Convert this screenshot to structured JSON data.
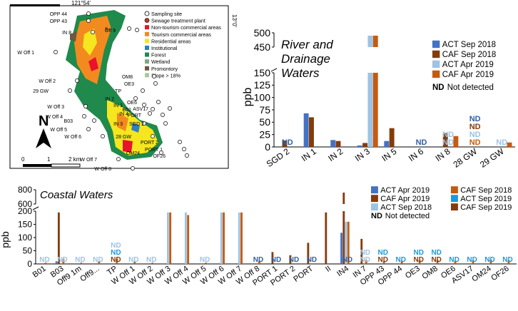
{
  "map": {
    "longitude_label": "121°54'",
    "latitude_label": "13°0'",
    "north_label": "N",
    "scale": {
      "zero": "0",
      "one": "1",
      "two": "2 km"
    },
    "legend": [
      {
        "label": "Sampling site",
        "symbol": "circle-open",
        "color": "#ffffff"
      },
      {
        "label": "Sewage treatment plant",
        "symbol": "circle-filled",
        "color": "#c0392b"
      },
      {
        "label": "Non-tourism commercial areas",
        "symbol": "square",
        "color": "#e8132b"
      },
      {
        "label": "Tourism commercial areas",
        "symbol": "square",
        "color": "#f28a1f"
      },
      {
        "label": "Residential areas",
        "symbol": "square",
        "color": "#f5e61f"
      },
      {
        "label": "Institutional",
        "symbol": "square",
        "color": "#2f7fc4"
      },
      {
        "label": "Forest",
        "symbol": "square",
        "color": "#1f8a4c"
      },
      {
        "label": "Wetland",
        "symbol": "square",
        "color": "#7fa58a"
      },
      {
        "label": "Promontory",
        "symbol": "square",
        "color": "#6b5a3e"
      },
      {
        "label": "Slope > 18%",
        "symbol": "square",
        "color": "#a8c8a0"
      }
    ],
    "site_labels": [
      "OPP 44",
      "OPP 43",
      "IN 8",
      "II",
      "Off 9",
      "W Off 1",
      "OM8",
      "W Off 2",
      "OE3",
      "29 GW",
      "TP",
      "IN 2",
      "IN 1",
      "OE6",
      "ASV17",
      "IN 4",
      "PORT",
      "W Off 3",
      "B01",
      "IN 3",
      "SGD 2",
      "W Off 4",
      "B03",
      "W Off 5",
      "W Off 6",
      "28 GW",
      "PORT 2",
      "PORT 1",
      "OM24",
      "OF26",
      "W Off 7",
      "W Off 8"
    ]
  },
  "chart_data": [
    {
      "type": "bar",
      "title": "River and Drainage Waters",
      "xlabel": "",
      "ylabel": "ppb",
      "ylim": [
        0,
        500
      ],
      "axis_break": [
        150,
        450
      ],
      "yticks_lower": [
        "0",
        "25",
        "50",
        "75",
        "100",
        "125",
        "150"
      ],
      "yticks_upper": [
        "450",
        "500"
      ],
      "categories": [
        "SGD 2",
        "IN 1",
        "IN 2",
        "IN 3",
        "IN 5",
        "IN 6",
        "IN 8",
        "28 GW",
        "29 GW"
      ],
      "series": [
        {
          "name": "ACT Sep 2018",
          "color": "#4472c4",
          "values": [
            null,
            68,
            14,
            3,
            12,
            null,
            null,
            null,
            null
          ]
        },
        {
          "name": "CAF Sep 2018",
          "color": "#843c0c",
          "values": [
            13,
            60,
            12,
            8,
            38,
            null,
            28,
            null,
            null
          ]
        },
        {
          "name": "ACT Apr 2019",
          "color": "#9dc3e6",
          "values": [
            null,
            null,
            null,
            490,
            null,
            null,
            null,
            null,
            null
          ]
        },
        {
          "name": "CAF Apr 2019",
          "color": "#c55a11",
          "values": [
            null,
            null,
            null,
            490,
            null,
            null,
            22,
            null,
            9
          ]
        }
      ],
      "nd_labels": [
        {
          "category": "SGD 2",
          "text": "ND",
          "color": "#2e5fa7"
        },
        {
          "category": "IN 6",
          "text": "ND",
          "color": "#2e5fa7"
        },
        {
          "category": "IN 8",
          "text": "ND",
          "color": "#9dc3e6"
        },
        {
          "category": "IN 8",
          "text": "ND",
          "color": "#9dc3e6"
        },
        {
          "category": "28 GW",
          "text": "ND",
          "color": "#c55a11"
        },
        {
          "category": "28 GW",
          "text": "ND",
          "color": "#9dc3e6"
        },
        {
          "category": "28 GW",
          "text": "ND",
          "color": "#843c0c"
        },
        {
          "category": "28 GW",
          "text": "ND",
          "color": "#2e5fa7"
        },
        {
          "category": "29 GW",
          "text": "ND",
          "color": "#9dc3e6"
        }
      ],
      "legend": {
        "placement": "top-right",
        "items": [
          {
            "label": "ACT Sep 2018",
            "color": "#4472c4"
          },
          {
            "label": "CAF Sep 2018",
            "color": "#843c0c"
          },
          {
            "label": "ACT Apr 2019",
            "color": "#9dc3e6"
          },
          {
            "label": "CAF Apr 2019",
            "color": "#c55a11"
          }
        ],
        "nd_key": "ND",
        "nd_text": "Not detected"
      }
    },
    {
      "type": "bar",
      "title": "Coastal Waters",
      "xlabel": "",
      "ylabel": "ppb",
      "ylim": [
        0,
        800
      ],
      "axis_break": [
        200,
        600
      ],
      "yticks_lower": [
        "0",
        "50",
        "100",
        "150",
        "200"
      ],
      "yticks_upper": [
        "600",
        "800"
      ],
      "categories": [
        "B01",
        "B03",
        "Off9 1m",
        "Off9...",
        "TP",
        "W Off 1",
        "W Off 2",
        "W Off 3",
        "W Off 4",
        "W Off 5",
        "W Off 6",
        "W Off 7",
        "W Off 8",
        "PORT 1",
        "PORT 2",
        "PORT",
        "II",
        "IN4",
        "IN 7",
        "OPP 43",
        "OPP 44",
        "OE3",
        "OM8",
        "OE6",
        "ASV17",
        "OM24",
        "OF26"
      ],
      "series": [
        {
          "name": "ACT Apr 2019",
          "color": "#4472c4",
          "values": [
            null,
            10,
            null,
            null,
            null,
            null,
            null,
            null,
            null,
            null,
            null,
            null,
            null,
            null,
            null,
            null,
            null,
            118,
            null,
            null,
            null,
            null,
            null,
            null,
            null,
            null,
            null
          ]
        },
        {
          "name": "CAF Apr 2019",
          "color": "#843c0c",
          "values": [
            null,
            195,
            null,
            null,
            null,
            null,
            null,
            null,
            null,
            null,
            null,
            null,
            null,
            45,
            33,
            80,
            195,
            760,
            95,
            null,
            null,
            null,
            null,
            null,
            null,
            null,
            null
          ]
        },
        {
          "name": "ACT Sep 2018",
          "color": "#9dc3e6",
          "values": [
            null,
            null,
            null,
            null,
            null,
            null,
            null,
            195,
            195,
            null,
            195,
            195,
            null,
            null,
            null,
            null,
            null,
            160,
            null,
            null,
            null,
            null,
            null,
            null,
            null,
            null,
            null
          ]
        },
        {
          "name": "CAF Sep 2018",
          "color": "#c55a11",
          "values": [
            5,
            20,
            5,
            10,
            20,
            8,
            5,
            195,
            185,
            5,
            195,
            195,
            10,
            null,
            null,
            null,
            null,
            160,
            15,
            10,
            12,
            14,
            15,
            12,
            14,
            16,
            14
          ]
        },
        {
          "name": "ACT Sep 2019",
          "color": "#1a9ae0",
          "values": [
            null,
            null,
            null,
            null,
            null,
            null,
            null,
            null,
            null,
            null,
            null,
            null,
            null,
            null,
            null,
            null,
            null,
            null,
            null,
            null,
            null,
            null,
            null,
            null,
            null,
            null,
            null
          ]
        },
        {
          "name": "CAF Sep 2019",
          "color": "#843c0c",
          "values": [
            null,
            null,
            null,
            null,
            null,
            null,
            null,
            null,
            null,
            null,
            null,
            null,
            null,
            null,
            null,
            null,
            null,
            null,
            null,
            null,
            null,
            null,
            null,
            null,
            null,
            null,
            null
          ]
        }
      ],
      "nd_labels": [
        {
          "category": "B01",
          "text": "ND",
          "color": "#9dc3e6"
        },
        {
          "category": "B03",
          "text": "ND",
          "color": "#9dc3e6"
        },
        {
          "category": "Off9 1m",
          "text": "ND",
          "color": "#9dc3e6"
        },
        {
          "category": "Off9...",
          "text": "ND",
          "color": "#9dc3e6"
        },
        {
          "category": "TP",
          "text": "ND",
          "color": "#843c0c"
        },
        {
          "category": "TP",
          "text": "ND",
          "color": "#1a9ae0"
        },
        {
          "category": "TP",
          "text": "ND",
          "color": "#9dc3e6"
        },
        {
          "category": "W Off 1",
          "text": "ND",
          "color": "#9dc3e6"
        },
        {
          "category": "W Off 2",
          "text": "ND",
          "color": "#9dc3e6"
        },
        {
          "category": "W Off 5",
          "text": "ND",
          "color": "#9dc3e6"
        },
        {
          "category": "W Off 8",
          "text": "ND",
          "color": "#2e5fa7"
        },
        {
          "category": "PORT 1",
          "text": "ND",
          "color": "#2e5fa7"
        },
        {
          "category": "PORT 2",
          "text": "ND",
          "color": "#2e5fa7"
        },
        {
          "category": "PORT",
          "text": "ND",
          "color": "#2e5fa7"
        },
        {
          "category": "IN4",
          "text": "ND",
          "color": "#2e5fa7"
        },
        {
          "category": "IN 7",
          "text": "ND",
          "color": "#9dc3e6"
        },
        {
          "category": "IN 7",
          "text": "ND",
          "color": "#9dc3e6"
        },
        {
          "category": "OPP 43",
          "text": "ND",
          "color": "#843c0c"
        },
        {
          "category": "OPP 43",
          "text": "ND",
          "color": "#1a9ae0"
        },
        {
          "category": "OPP 44",
          "text": "ND",
          "color": "#1a9ae0"
        },
        {
          "category": "OE3",
          "text": "ND",
          "color": "#843c0c"
        },
        {
          "category": "OE3",
          "text": "ND",
          "color": "#1a9ae0"
        },
        {
          "category": "OM8",
          "text": "ND",
          "color": "#843c0c"
        },
        {
          "category": "OM8",
          "text": "ND",
          "color": "#1a9ae0"
        },
        {
          "category": "OE6",
          "text": "ND",
          "color": "#1a9ae0"
        },
        {
          "category": "ASV17",
          "text": "ND",
          "color": "#1a9ae0"
        },
        {
          "category": "OM24",
          "text": "ND",
          "color": "#1a9ae0"
        },
        {
          "category": "OF26",
          "text": "ND",
          "color": "#1a9ae0"
        }
      ],
      "legend": {
        "placement": "top-right",
        "items": [
          {
            "label": "ACT Apr 2019",
            "color": "#4472c4"
          },
          {
            "label": "CAF Apr 2019",
            "color": "#843c0c"
          },
          {
            "label": "ACT Sep 2018",
            "color": "#9dc3e6"
          },
          {
            "label": "CAF Sep 2018",
            "color": "#c55a11"
          },
          {
            "label": "ACT Sep 2019",
            "color": "#1a9ae0"
          },
          {
            "label": "CAF Sep 2019",
            "color": "#843c0c"
          }
        ],
        "nd_key": "ND",
        "nd_text": "Not detected"
      }
    }
  ]
}
